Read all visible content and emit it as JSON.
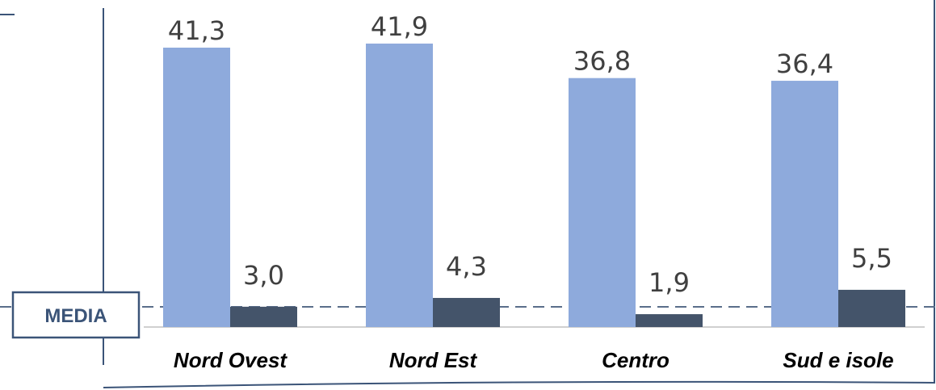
{
  "chart_data": {
    "type": "bar",
    "categories": [
      "Nord Ovest",
      "Nord Est",
      "Centro",
      "Sud e isole"
    ],
    "series": [
      {
        "values": [
          41.3,
          41.9,
          36.8,
          36.4
        ],
        "labels": [
          "41,3",
          "41,9",
          "36,8",
          "36,4"
        ],
        "color": "#8eaadc"
      },
      {
        "values": [
          3.0,
          4.3,
          1.9,
          5.5
        ],
        "labels": [
          "3,0",
          "4,3",
          "1,9",
          "5,5"
        ],
        "color": "#44546a"
      }
    ],
    "reference_line": {
      "label": "MEDIA",
      "style": "dashed",
      "color": "#5a6e8a"
    },
    "title": "",
    "xlabel": "",
    "ylabel": "",
    "ylim": [
      0,
      45
    ],
    "grid": false,
    "legend": "none"
  },
  "colors": {
    "axis": "#3b5478",
    "baseline": "#d0d0d0",
    "media_border": "#3b5478",
    "media_text": "#3b5478"
  }
}
